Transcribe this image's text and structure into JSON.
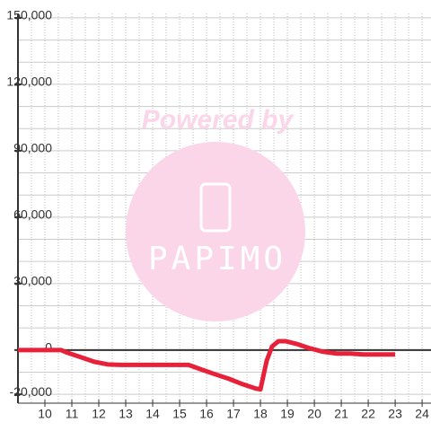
{
  "chart_data": {
    "type": "line",
    "watermark": {
      "top": "Powered by",
      "brand": "PAPIMO"
    },
    "x": [
      9,
      10.6,
      10.83,
      11.33,
      11.83,
      12.33,
      12.83,
      13.33,
      13.83,
      14.33,
      14.83,
      15.33,
      15.83,
      16.33,
      16.83,
      17.33,
      17.83,
      18,
      18.23,
      18.43,
      18.67,
      18.93,
      19.33,
      19.83,
      20.33,
      20.83,
      21.33,
      21.83,
      23
    ],
    "series": [
      {
        "color": "#e8213a",
        "values": [
          0,
          0,
          -1200,
          -3200,
          -5300,
          -6500,
          -6700,
          -6700,
          -6700,
          -6700,
          -6700,
          -6700,
          -8900,
          -11000,
          -13000,
          -15400,
          -17400,
          -17800,
          -4900,
          1600,
          4000,
          4000,
          2800,
          800,
          -800,
          -1600,
          -1600,
          -2000,
          -2000
        ]
      }
    ],
    "xlim": [
      9,
      24.33
    ],
    "xticks": [
      10,
      11,
      12,
      13,
      14,
      15,
      16,
      17,
      18,
      19,
      20,
      21,
      22,
      23,
      24
    ],
    "ylim": [
      -24000,
      152000
    ],
    "yticks": [
      {
        "value": -20000,
        "label": "-20,000"
      },
      0,
      {
        "value": 30000,
        "label": "30,000"
      },
      {
        "value": 60000,
        "label": "60,000"
      },
      {
        "value": 90000,
        "label": "90,000"
      },
      {
        "value": 120000,
        "label": "120,000"
      },
      {
        "value": 150000,
        "label": "150,000"
      }
    ],
    "x_minor_step": 0.5,
    "y_minor_step": 10000
  }
}
